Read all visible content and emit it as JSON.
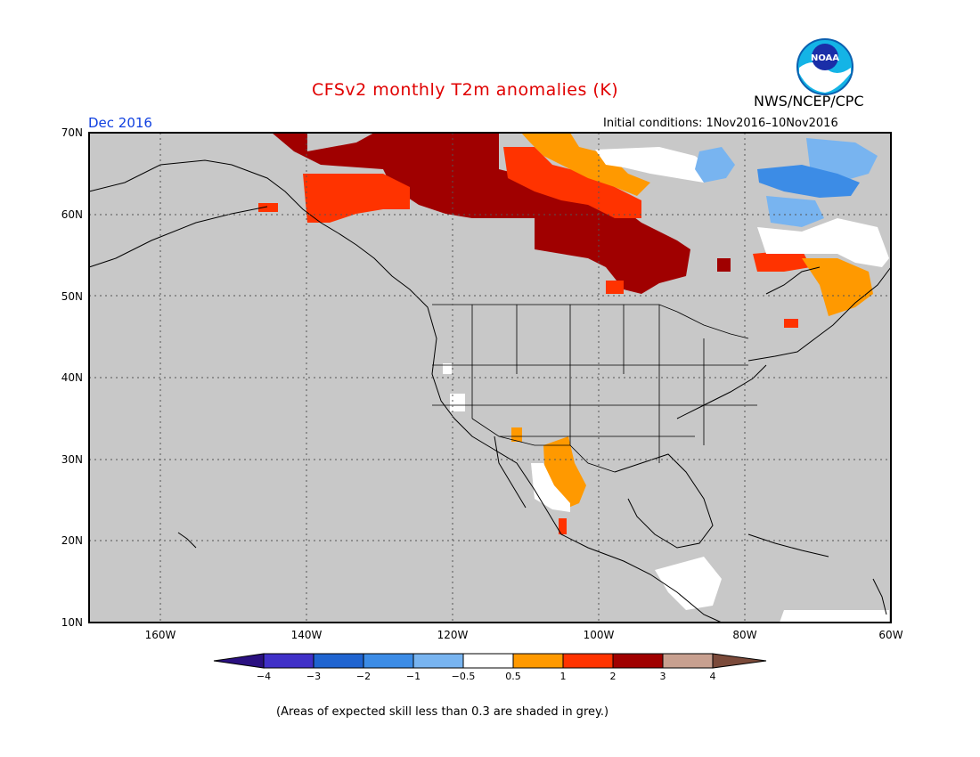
{
  "header": {
    "title": "CFSv2 monthly T2m anomalies (K)",
    "month": "Dec 2016",
    "initial_conditions": "Initial conditions: 1Nov2016–10Nov2016",
    "organization": "NWS/NCEP/CPC",
    "logo_text": "NOAA"
  },
  "map": {
    "lat_labels": [
      "70N",
      "60N",
      "50N",
      "40N",
      "30N",
      "20N",
      "10N"
    ],
    "lon_labels": [
      "160W",
      "140W",
      "120W",
      "100W",
      "80W",
      "60W"
    ],
    "no_skill_color": "#c8c8c8"
  },
  "colorbar": {
    "labels": [
      "−4",
      "−3",
      "−2",
      "−1",
      "−0.5",
      "0.5",
      "1",
      "2",
      "3",
      "4"
    ],
    "colors": [
      "#2a1080",
      "#4030c8",
      "#1f64d0",
      "#3c8ce6",
      "#78b4f0",
      "#ffffff",
      "#ff9900",
      "#ff3300",
      "#a00000",
      "#c8a090",
      "#7b4a3a"
    ]
  },
  "footnote": "(Areas of expected skill less than 0.3 are shaded in grey.)"
}
